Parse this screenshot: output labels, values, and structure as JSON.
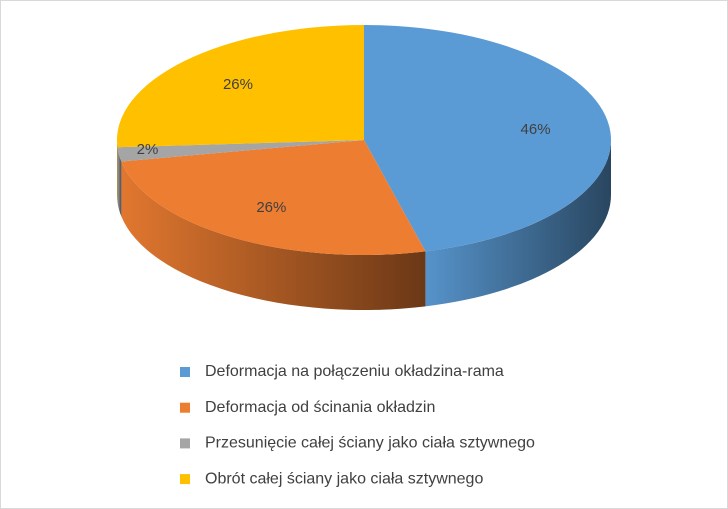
{
  "chart_data": {
    "type": "pie",
    "categories": [
      "Deformacja na połączeniu okładzina-rama",
      "Deformacja od ścinania okładzin",
      "Przesunięcie całej ściany jako ciała sztywnego",
      "Obrót całej ściany jako ciała sztywnego"
    ],
    "values": [
      46,
      26,
      2,
      26
    ],
    "value_labels": [
      "46%",
      "26%",
      "2%",
      "26%"
    ],
    "colors": [
      "#5b9bd5",
      "#ed7d31",
      "#a5a5a5",
      "#ffc000"
    ],
    "legend": "bottom"
  }
}
